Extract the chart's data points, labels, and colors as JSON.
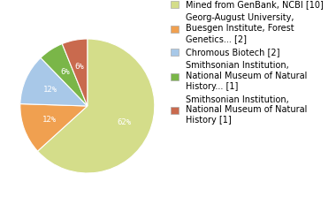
{
  "labels": [
    "Mined from GenBank, NCBI [10]",
    "Georg-August University,\nBuesgen Institute, Forest\nGenetics... [2]",
    "Chromous Biotech [2]",
    "Smithsonian Institution,\nNational Museum of Natural\nHistory... [1]",
    "Smithsonian Institution,\nNational Museum of Natural\nHistory [1]"
  ],
  "values": [
    62,
    12,
    12,
    6,
    6
  ],
  "colors": [
    "#d4dd8a",
    "#f0a050",
    "#a8c8e8",
    "#7ab648",
    "#c96a4e"
  ],
  "pct_labels": [
    "62%",
    "12%",
    "12%",
    "6%",
    "6%"
  ],
  "background_color": "#ffffff",
  "fontsize": 6.5,
  "legend_fontsize": 7.0
}
